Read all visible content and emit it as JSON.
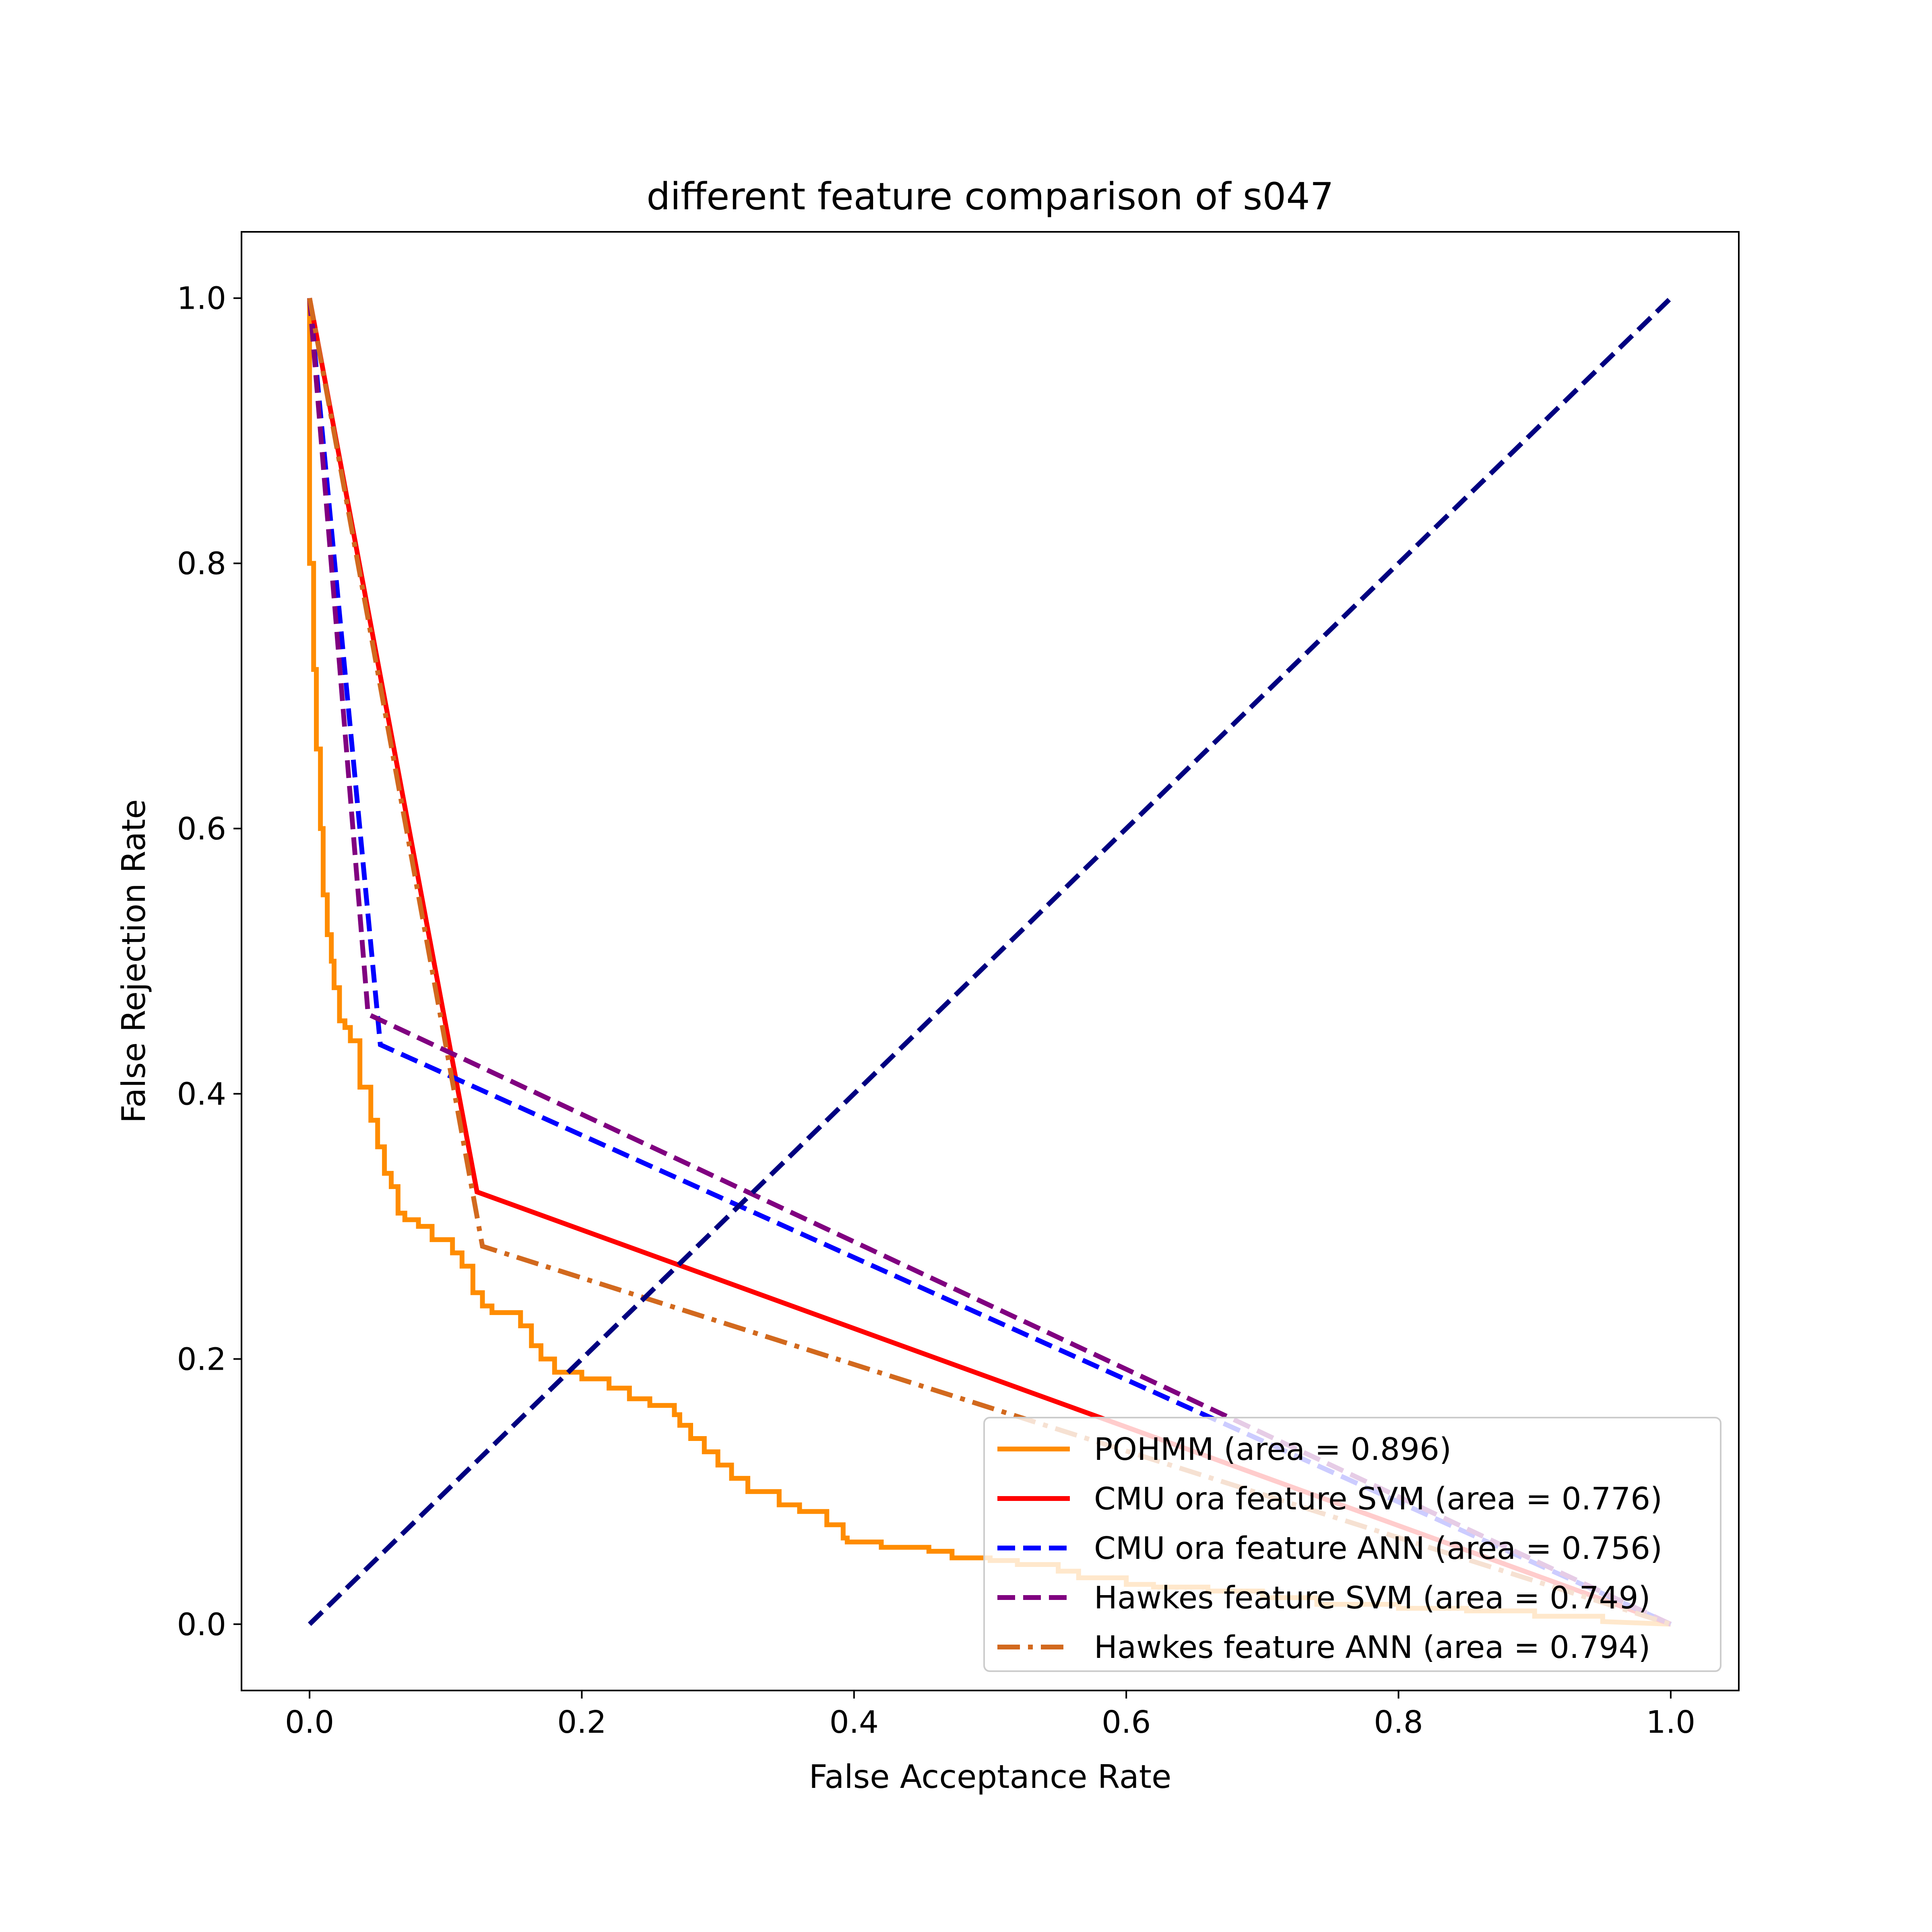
{
  "chart_data": {
    "type": "line",
    "title": "different feature comparison of s047",
    "xlabel": "False Acceptance Rate",
    "ylabel": "False Rejection Rate",
    "xlim": [
      -0.05,
      1.05
    ],
    "ylim": [
      -0.05,
      1.05
    ],
    "xticks": [
      "0.0",
      "0.2",
      "0.4",
      "0.6",
      "0.8",
      "1.0"
    ],
    "yticks": [
      "0.0",
      "0.2",
      "0.4",
      "0.6",
      "0.8",
      "1.0"
    ],
    "grid": false,
    "legend_position": "lower-right",
    "series": [
      {
        "name": "POHMM (area = 0.896)",
        "color": "#ff8c00",
        "style": "solid",
        "x": [
          0.0,
          0.0,
          0.003,
          0.003,
          0.005,
          0.005,
          0.008,
          0.008,
          0.01,
          0.01,
          0.013,
          0.013,
          0.016,
          0.016,
          0.018,
          0.018,
          0.022,
          0.022,
          0.026,
          0.026,
          0.03,
          0.03,
          0.037,
          0.037,
          0.045,
          0.045,
          0.05,
          0.05,
          0.055,
          0.055,
          0.06,
          0.06,
          0.065,
          0.065,
          0.07,
          0.07,
          0.08,
          0.08,
          0.09,
          0.09,
          0.105,
          0.105,
          0.112,
          0.112,
          0.12,
          0.12,
          0.127,
          0.127,
          0.134,
          0.134,
          0.155,
          0.155,
          0.163,
          0.163,
          0.17,
          0.17,
          0.18,
          0.18,
          0.2,
          0.2,
          0.22,
          0.22,
          0.235,
          0.235,
          0.25,
          0.25,
          0.268,
          0.268,
          0.272,
          0.272,
          0.28,
          0.28,
          0.29,
          0.29,
          0.3,
          0.3,
          0.31,
          0.31,
          0.322,
          0.322,
          0.345,
          0.345,
          0.36,
          0.36,
          0.38,
          0.38,
          0.392,
          0.392,
          0.395,
          0.395,
          0.42,
          0.42,
          0.455,
          0.455,
          0.472,
          0.472,
          0.5,
          0.5,
          0.52,
          0.52,
          0.55,
          0.55,
          0.565,
          0.565,
          0.6,
          0.6,
          0.62,
          0.62,
          0.66,
          0.66,
          0.7,
          0.7,
          0.74,
          0.74,
          0.8,
          0.8,
          0.85,
          0.85,
          0.9,
          0.9,
          0.95,
          0.95,
          1.0
        ],
        "y": [
          1.0,
          0.8,
          0.8,
          0.72,
          0.72,
          0.66,
          0.66,
          0.6,
          0.6,
          0.55,
          0.55,
          0.52,
          0.52,
          0.5,
          0.5,
          0.48,
          0.48,
          0.455,
          0.455,
          0.45,
          0.45,
          0.44,
          0.44,
          0.405,
          0.405,
          0.38,
          0.38,
          0.36,
          0.36,
          0.34,
          0.34,
          0.33,
          0.33,
          0.31,
          0.31,
          0.305,
          0.305,
          0.3,
          0.3,
          0.29,
          0.29,
          0.28,
          0.28,
          0.27,
          0.27,
          0.25,
          0.25,
          0.24,
          0.24,
          0.235,
          0.235,
          0.225,
          0.225,
          0.21,
          0.21,
          0.2,
          0.2,
          0.19,
          0.19,
          0.185,
          0.185,
          0.178,
          0.178,
          0.17,
          0.17,
          0.165,
          0.165,
          0.158,
          0.158,
          0.15,
          0.15,
          0.14,
          0.14,
          0.13,
          0.13,
          0.12,
          0.12,
          0.11,
          0.11,
          0.1,
          0.1,
          0.09,
          0.09,
          0.085,
          0.085,
          0.075,
          0.075,
          0.065,
          0.065,
          0.062,
          0.062,
          0.058,
          0.058,
          0.055,
          0.055,
          0.05,
          0.05,
          0.048,
          0.048,
          0.045,
          0.045,
          0.04,
          0.04,
          0.035,
          0.035,
          0.03,
          0.03,
          0.028,
          0.028,
          0.025,
          0.025,
          0.02,
          0.02,
          0.015,
          0.015,
          0.012,
          0.012,
          0.01,
          0.01,
          0.006,
          0.006,
          0.002,
          0.0
        ]
      },
      {
        "name": "CMU ora feature SVM (area = 0.776)",
        "color": "#ff0000",
        "style": "solid",
        "x": [
          0.0,
          0.123,
          1.0
        ],
        "y": [
          1.0,
          0.326,
          0.0
        ]
      },
      {
        "name": "CMU ora feature ANN (area = 0.756)",
        "color": "#0000ff",
        "style": "dashed",
        "x": [
          0.0,
          0.052,
          1.0
        ],
        "y": [
          1.0,
          0.437,
          0.0
        ]
      },
      {
        "name": "Hawkes feature SVM (area = 0.749)",
        "color": "#800080",
        "style": "dashed",
        "x": [
          0.0,
          0.043,
          1.0
        ],
        "y": [
          1.0,
          0.46,
          0.0
        ]
      },
      {
        "name": "Hawkes feature ANN (area = 0.794)",
        "color": "#d2691e",
        "style": "dashdot",
        "x": [
          0.0,
          0.127,
          1.0
        ],
        "y": [
          1.0,
          0.285,
          0.0
        ]
      },
      {
        "name": "",
        "color": "#000080",
        "style": "dashed",
        "x": [
          0.0,
          1.0
        ],
        "y": [
          0.0,
          1.0
        ]
      }
    ]
  }
}
